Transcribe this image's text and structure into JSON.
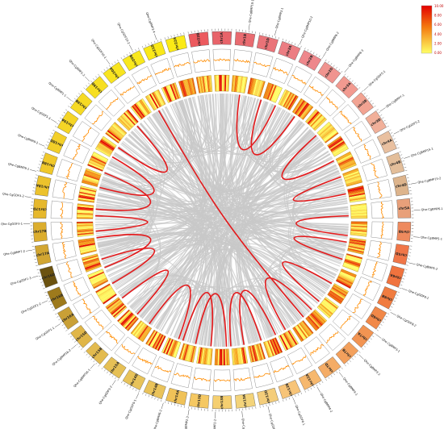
{
  "figure": {
    "colors": {
      "synteny_background": "#c8c8c8",
      "synteny_highlight": "#e31a1c",
      "density_low": "#ffff66",
      "density_high": "#e30000",
      "gc_line": "#ff8c00"
    },
    "legend": {
      "ticks": [
        "10.00",
        "8.00",
        "6.00",
        "4.00",
        "2.00",
        "0.00"
      ]
    },
    "chromosomes": [
      {
        "label": "chr1A",
        "color": "#e8646a"
      },
      {
        "label": "chr1B",
        "color": "#e96b70"
      },
      {
        "label": "chr1D",
        "color": "#ea7378"
      },
      {
        "label": "chr2A",
        "color": "#ec7d82"
      },
      {
        "label": "chr2B",
        "color": "#ee878b"
      },
      {
        "label": "chr2D",
        "color": "#f0948f"
      },
      {
        "label": "chr3A",
        "color": "#f29a90"
      },
      {
        "label": "chr3B",
        "color": "#f2a392"
      },
      {
        "label": "chr3D",
        "color": "#f1b09a"
      },
      {
        "label": "chr4A",
        "color": "#e9c0a0"
      },
      {
        "label": "chr4B",
        "color": "#e3be9a"
      },
      {
        "label": "chr4D",
        "color": "#ddb48c"
      },
      {
        "label": "chr5A",
        "color": "#e8a07a"
      },
      {
        "label": "chr5B",
        "color": "#ee8a5e"
      },
      {
        "label": "chr5D",
        "color": "#f07648"
      },
      {
        "label": "chr6A",
        "color": "#f0733e"
      },
      {
        "label": "chr6B",
        "color": "#f07c40"
      },
      {
        "label": "chr6D",
        "color": "#f18848"
      },
      {
        "label": "chr7A",
        "color": "#f29452"
      },
      {
        "label": "chr7B",
        "color": "#f3a05c"
      },
      {
        "label": "chr7D",
        "color": "#f4ac66"
      },
      {
        "label": "chr12A",
        "color": "#f6b86e"
      },
      {
        "label": "chr12B",
        "color": "#f7c478"
      },
      {
        "label": "chr12D",
        "color": "#f4cd7a"
      },
      {
        "label": "chr13A",
        "color": "#f3d37a"
      },
      {
        "label": "chr13B",
        "color": "#f5cf70"
      },
      {
        "label": "chr13D",
        "color": "#f5c862"
      },
      {
        "label": "chr14A",
        "color": "#f0c258"
      },
      {
        "label": "chr14B",
        "color": "#eac35a"
      },
      {
        "label": "chr14D",
        "color": "#e8c35a"
      },
      {
        "label": "chr15A",
        "color": "#e6c055"
      },
      {
        "label": "chr15B",
        "color": "#e3bb4f"
      },
      {
        "label": "chr15D",
        "color": "#e0b648"
      },
      {
        "label": "chr16A",
        "color": "#c9a036"
      },
      {
        "label": "chr16B",
        "color": "#9e7a1c"
      },
      {
        "label": "chr16D",
        "color": "#6b5210"
      },
      {
        "label": "chr17A",
        "color": "#d2a632"
      },
      {
        "label": "chr17B",
        "color": "#dcae2e"
      },
      {
        "label": "chr17D",
        "color": "#e6b82c"
      },
      {
        "label": "chr18A",
        "color": "#ecc22c"
      },
      {
        "label": "chr18B",
        "color": "#f0c82a"
      },
      {
        "label": "chr18D",
        "color": "#f3cf28"
      },
      {
        "label": "chr19A",
        "color": "#f5d526"
      },
      {
        "label": "chr19B",
        "color": "#f6da24"
      },
      {
        "label": "chr19D",
        "color": "#f7df22"
      },
      {
        "label": "chr20A",
        "color": "#f8e41f"
      },
      {
        "label": "chr20B",
        "color": "#f9e81c"
      },
      {
        "label": "chr21D",
        "color": "#fae818"
      },
      {
        "label": "chr22A",
        "color": "#fbea16"
      },
      {
        "label": "chr22B",
        "color": "#ec5a5e"
      }
    ],
    "gene_labels": [
      "Qhe-CgBMP10-1",
      "Qhe-CgBMP2-1",
      "Qhe-CgBMP10-2",
      "Qhe-CgBMP8-2",
      "Qhe-CgBMP8-3",
      "Qhe-CgGDF5-1",
      "Qhe-CgBMP7-1",
      "Qhe-CgGDF5-2",
      "Qhe-CgBMP15-1",
      "Qhe-CgBMP15-2",
      "Qhe-CgBMP6-1",
      "Qhe-CgBMP5-1",
      "Qhe-CgBMP5-2",
      "Qhe-CgGDF8-1",
      "Qhe-CgGDF8-2",
      "Qhe-CgBMP3-1",
      "Qhe-CgBMP3-2",
      "Qhe-CgBMP4-1",
      "Qhe-CgBMP4-2",
      "Qhe-CgGDF6-1",
      "Qhe-CgGDF6-2",
      "Qhe-CgGDF6-3",
      "Qhe-CgBMP2-2",
      "Qhe-CgBMP2-3",
      "Qhe-CgBMP6-2",
      "Qhe-CgGDF9-1",
      "Qhe-CgGDF9-2",
      "Qhe-CgBMP16-1",
      "Qhe-CgBMP16-2",
      "Qhe-CgGDF1-1",
      "Qhe-CgGDF1-2",
      "Qhe-CgGDF1-3",
      "Qhe-CgBMP7-2",
      "Qhe-CgGDF3-1",
      "Qhe-CgGDF3-2",
      "Qhe-CgBMP9-1",
      "Qhe-CgBMP9-2",
      "Qhe-CgGDF5-3",
      "Qhe-CgBMP1-1",
      "Qhe-CgBMP1-2",
      "Qhe-CgGDF10-1",
      "Qhe-CgGDF10-2",
      "Qhe-CgBMP2-4"
    ]
  }
}
